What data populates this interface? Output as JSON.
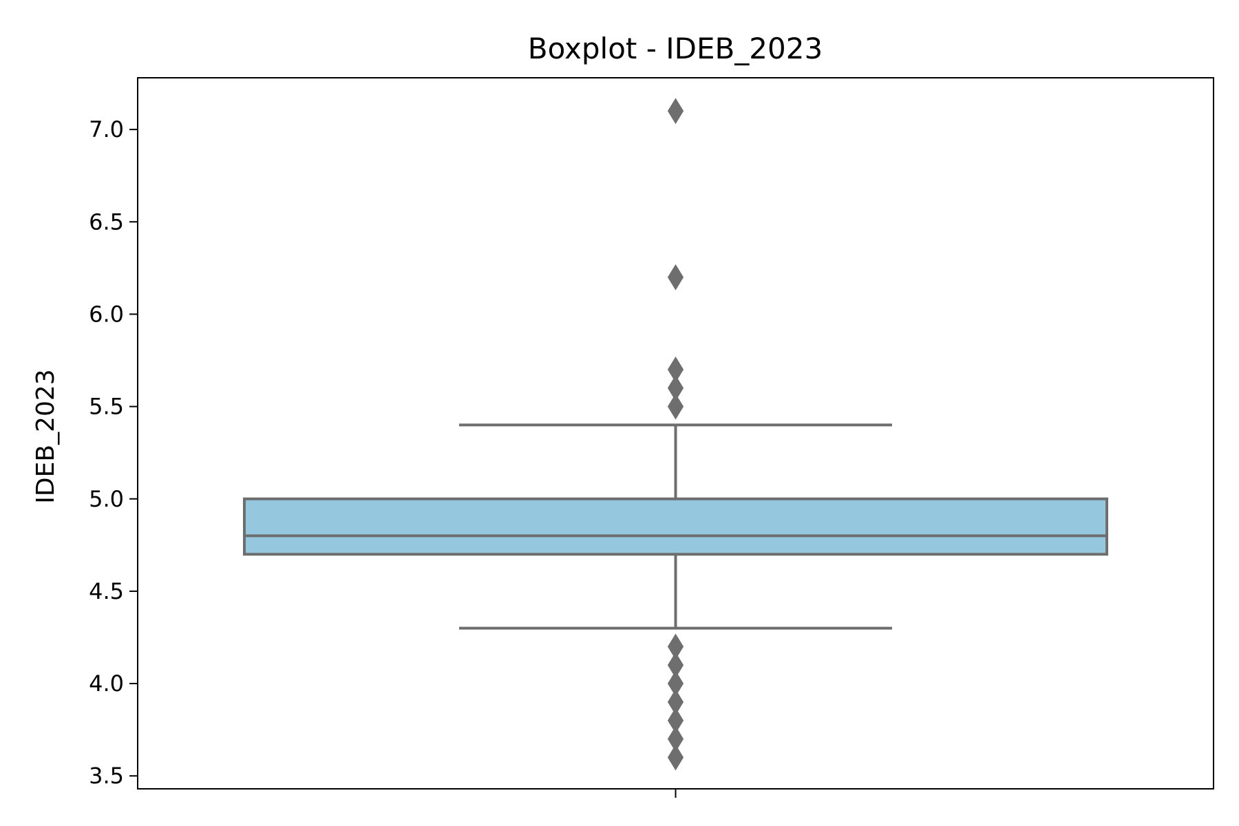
{
  "chart_data": {
    "type": "box",
    "title": "Boxplot - IDEB_2023",
    "xlabel": "",
    "ylabel": "IDEB_2023",
    "ylim": [
      3.43,
      7.28
    ],
    "yticks": [
      3.5,
      4.0,
      4.5,
      5.0,
      5.5,
      6.0,
      6.5,
      7.0
    ],
    "ytick_labels": [
      "3.5",
      "4.0",
      "4.5",
      "5.0",
      "5.5",
      "6.0",
      "6.5",
      "7.0"
    ],
    "grid": false,
    "series": [
      {
        "name": "IDEB_2023",
        "whisker_low": 4.3,
        "q1": 4.7,
        "median": 4.8,
        "q3": 5.0,
        "whisker_high": 5.4,
        "outliers": [
          7.1,
          6.2,
          5.7,
          5.6,
          5.5,
          4.2,
          4.1,
          4.0,
          3.9,
          3.8,
          3.7,
          3.6
        ]
      }
    ],
    "colors": {
      "box_fill": "#95c8de",
      "line": "#6e6e6e",
      "outlier": "#6e6e6e",
      "axis": "#000000"
    }
  }
}
